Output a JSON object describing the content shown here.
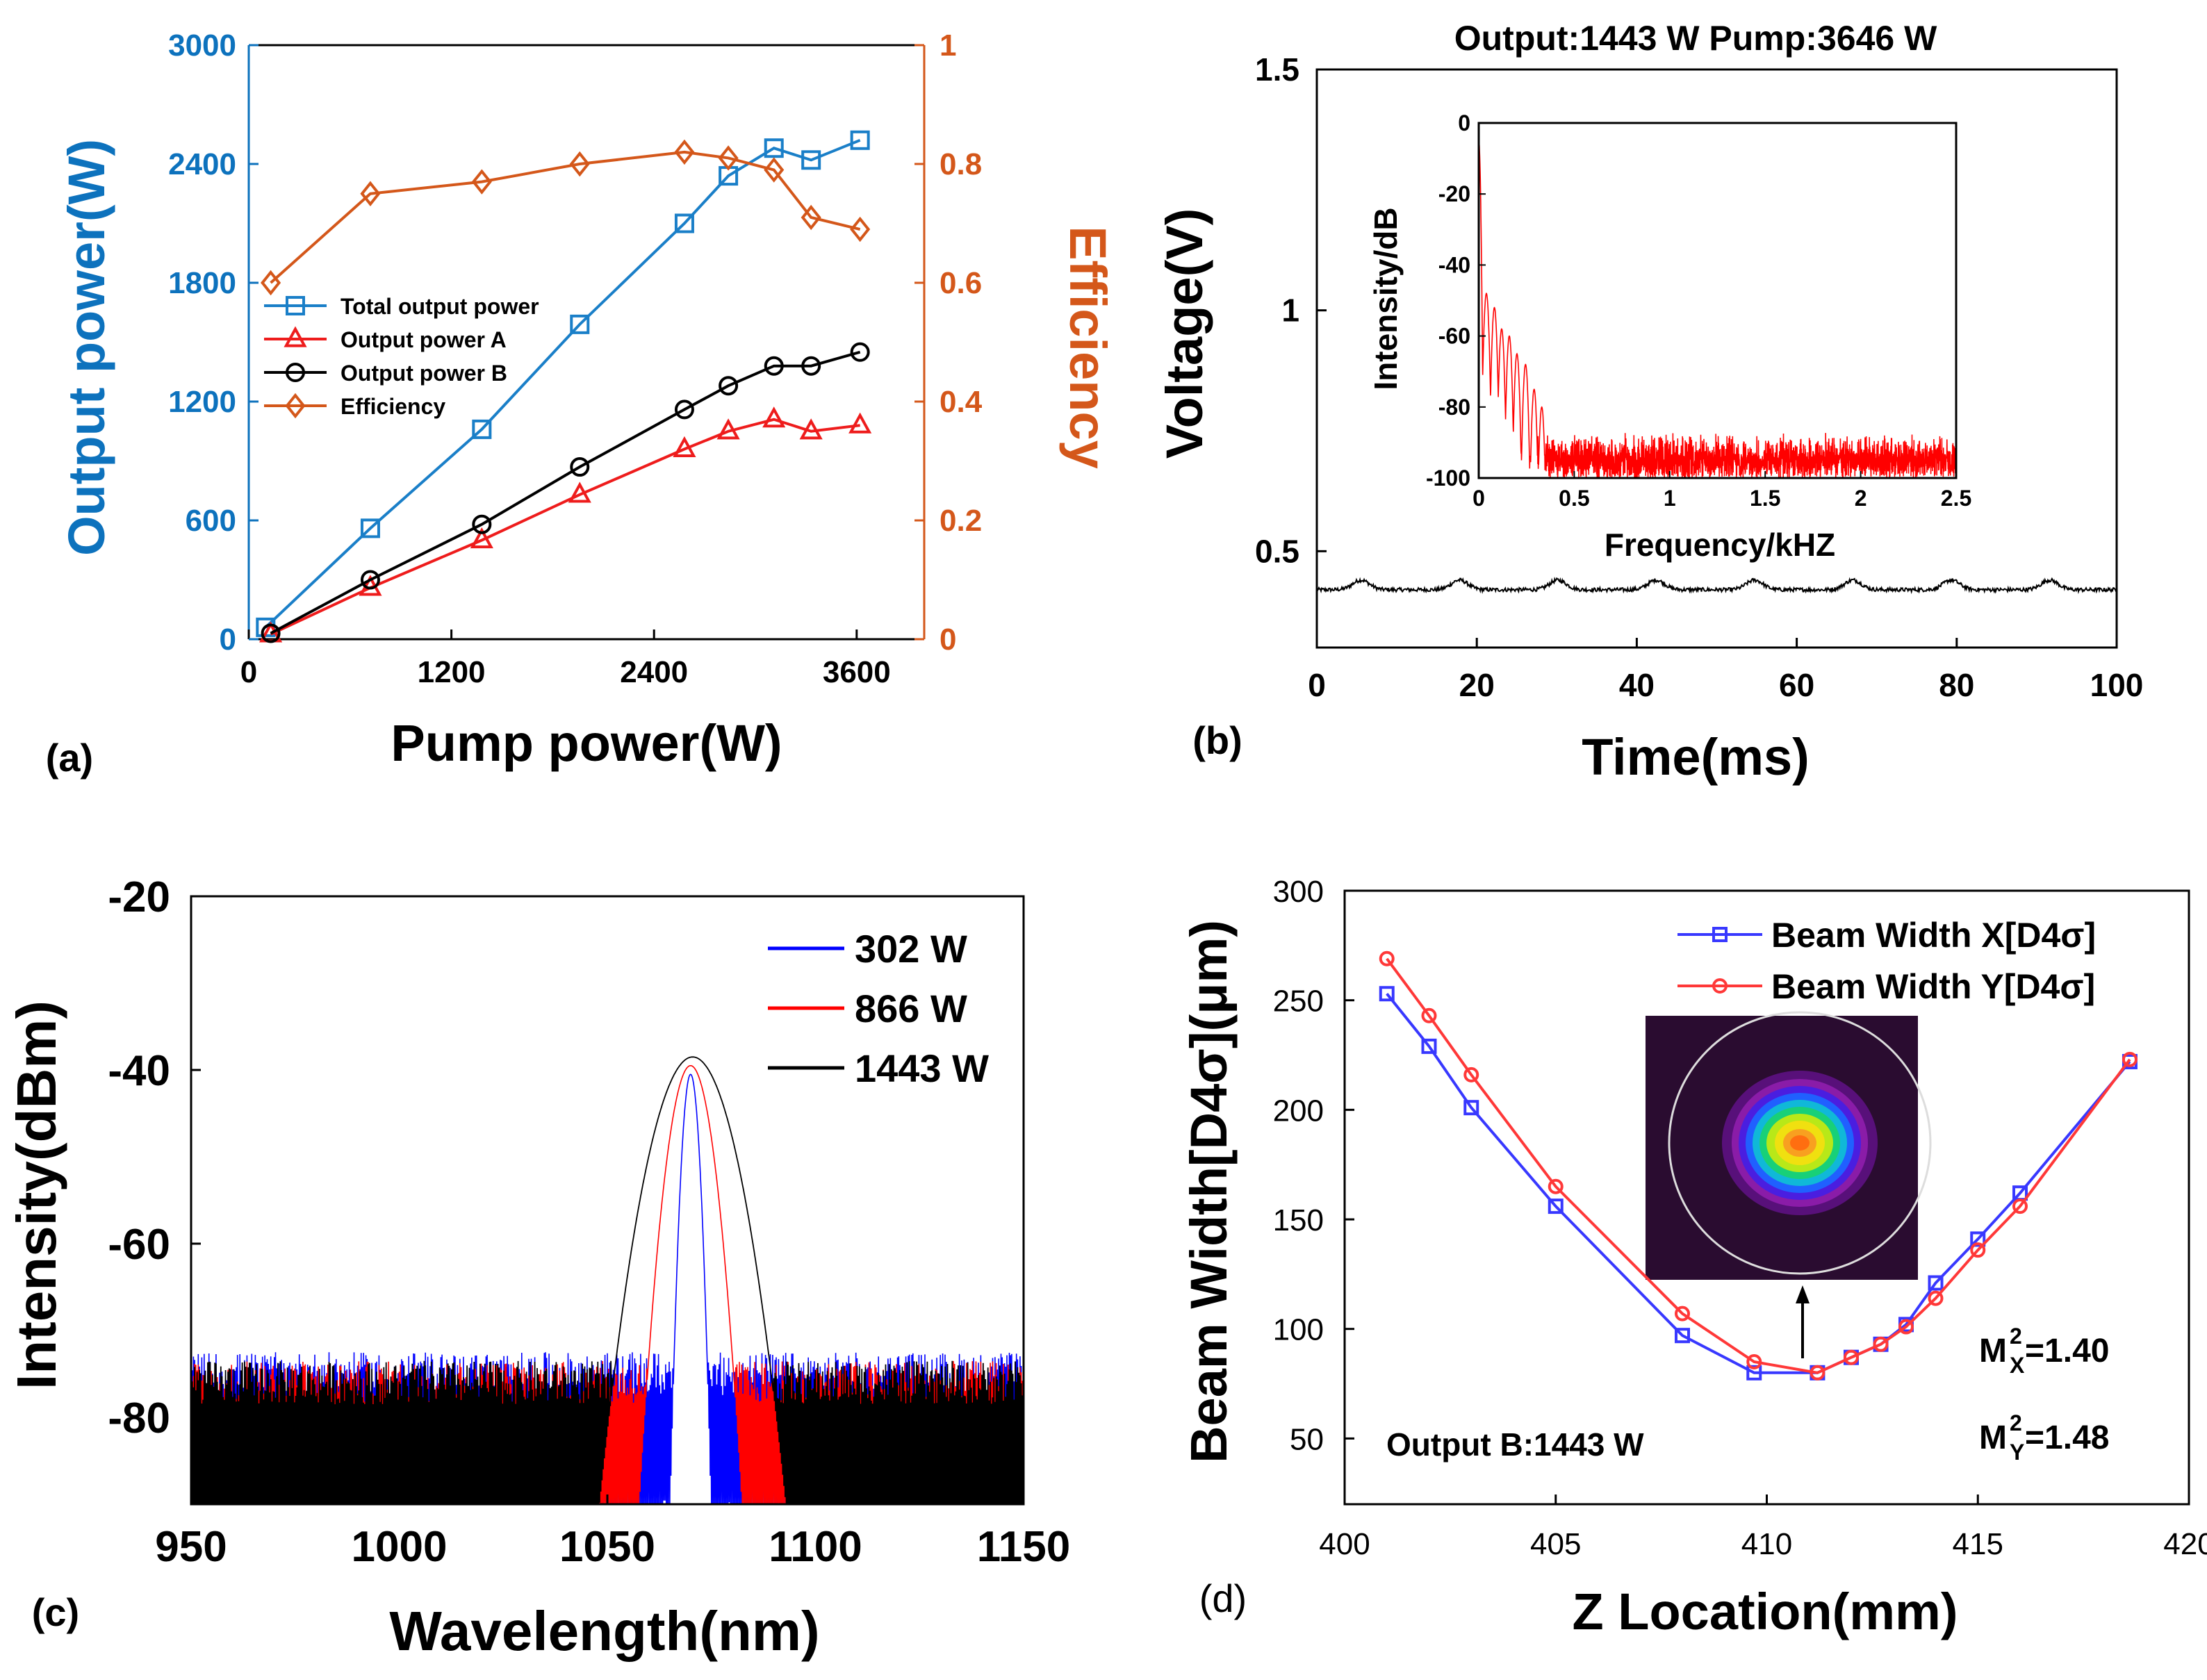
{
  "chart_data": [
    {
      "panel": "(a)",
      "type": "line",
      "title": "",
      "xlabel": "Pump power(W)",
      "ylabel": "Output power(W)",
      "y2label": "Efficiency",
      "xlim": [
        0,
        4000
      ],
      "ylim": [
        0,
        3000
      ],
      "y2lim": [
        0,
        1
      ],
      "xticks": [
        "0",
        "1200",
        "2400",
        "3600"
      ],
      "yticks": [
        "0",
        "600",
        "1200",
        "1800",
        "2400",
        "3000"
      ],
      "y2ticks": [
        "0",
        "0.2",
        "0.4",
        "0.6",
        "0.8",
        "1"
      ],
      "colors": {
        "left_axis": "#0d72bd",
        "right_axis": "#d4571a"
      },
      "legend_position": "middle-left",
      "series": [
        {
          "name": "Total output power",
          "axis": "left",
          "color": "#1a7fc8",
          "marker": "square",
          "x": [
            100,
            720,
            1380,
            1960,
            2580,
            2840,
            3110,
            3330,
            3620
          ],
          "y": [
            60,
            560,
            1060,
            1590,
            2100,
            2340,
            2480,
            2420,
            2520
          ]
        },
        {
          "name": "Output power A",
          "axis": "left",
          "color": "#ee1c1c",
          "marker": "triangle",
          "x": [
            130,
            720,
            1380,
            1960,
            2580,
            2840,
            3110,
            3330,
            3620
          ],
          "y": [
            25,
            260,
            500,
            730,
            960,
            1050,
            1110,
            1050,
            1080
          ]
        },
        {
          "name": "Output power B",
          "axis": "left",
          "color": "#000000",
          "marker": "circle",
          "x": [
            130,
            720,
            1380,
            1960,
            2580,
            2840,
            3110,
            3330,
            3620
          ],
          "y": [
            30,
            300,
            580,
            870,
            1160,
            1280,
            1380,
            1380,
            1450
          ]
        },
        {
          "name": "Efficiency",
          "axis": "right",
          "color": "#d4571a",
          "marker": "diamond",
          "x": [
            130,
            720,
            1380,
            1960,
            2580,
            2840,
            3110,
            3330,
            3620
          ],
          "y": [
            0.6,
            0.75,
            0.77,
            0.8,
            0.82,
            0.81,
            0.79,
            0.71,
            0.69
          ]
        }
      ]
    },
    {
      "panel": "(b)",
      "type": "line",
      "title": "Output:1443 W Pump:3646 W",
      "xlabel": "Time(ms)",
      "ylabel": "Voltage(V)",
      "xlim": [
        0,
        100
      ],
      "ylim": [
        0.3,
        1.5
      ],
      "xticks": [
        "0",
        "20",
        "40",
        "60",
        "80",
        "100"
      ],
      "yticks": [
        "0.5",
        "1",
        "1.5"
      ],
      "series": [
        {
          "name": "Voltage",
          "color": "#000000",
          "baseline": 0.42,
          "ripple_amplitude": 0.02,
          "ripple_period_ms": 12.3
        }
      ],
      "inset": {
        "type": "line",
        "xlabel": "Frequency/kHZ",
        "ylabel": "Intensity/dB",
        "xlim": [
          0,
          2.5
        ],
        "ylim": [
          -100,
          0
        ],
        "xticks": [
          "0",
          "0.5",
          "1",
          "1.5",
          "2",
          "2.5"
        ],
        "yticks": [
          "0",
          "-20",
          "-40",
          "-60",
          "-80",
          "-100"
        ],
        "series": [
          {
            "name": "Spectrum",
            "color": "#ff0000",
            "noise_floor": -93,
            "peaks_x": [
              0.0,
              0.04,
              0.082,
              0.12,
              0.16,
              0.2,
              0.245,
              0.29,
              0.33
            ],
            "peaks_y": [
              -5,
              -48,
              -52,
              -58,
              -60,
              -65,
              -68,
              -75,
              -80
            ]
          }
        ]
      }
    },
    {
      "panel": "(c)",
      "type": "line",
      "title": "",
      "xlabel": "Wavelength(nm)",
      "ylabel": "Intensity(dBm)",
      "xlim": [
        950,
        1150
      ],
      "ylim": [
        -90,
        -20
      ],
      "xticks": [
        "950",
        "1000",
        "1050",
        "1100",
        "1150"
      ],
      "yticks": [
        "-20",
        "-40",
        "-60",
        "-80"
      ],
      "legend_position": "top-right",
      "series": [
        {
          "name": "302 W",
          "color": "#0000ff",
          "peak_x": 1070,
          "peak_y": -40.5,
          "fwhm_nm": 2,
          "floor": -73
        },
        {
          "name": "866 W",
          "color": "#ff0000",
          "peak_x": 1070,
          "peak_y": -39.5,
          "fwhm_nm": 5,
          "floor": -74
        },
        {
          "name": "1443 W",
          "color": "#000000",
          "peak_x": 1070.5,
          "peak_y": -38.5,
          "fwhm_nm": 9,
          "floor": -74
        }
      ]
    },
    {
      "panel": "(d)",
      "type": "line",
      "title": "",
      "xlabel": "Z Location(mm)",
      "ylabel": "Beam Width[D4σ](μm)",
      "xlim": [
        400,
        420
      ],
      "ylim": [
        20,
        300
      ],
      "xticks": [
        "400",
        "405",
        "410",
        "415",
        "420"
      ],
      "yticks": [
        "50",
        "100",
        "150",
        "200",
        "250",
        "300"
      ],
      "legend_position": "top-right",
      "annotations": {
        "output": "Output B:1443 W",
        "m2x": "=1.40",
        "m2y": "=1.48",
        "m_base": "M",
        "sup": "2",
        "sub_x": "X",
        "sub_y": "Y"
      },
      "series": [
        {
          "name": "Beam Width X[D4σ]",
          "color": "#3838ff",
          "marker": "square",
          "x": [
            401,
            402,
            403,
            405,
            408,
            409.7,
            411.2,
            412,
            412.7,
            413.3,
            414,
            415,
            416,
            418.6
          ],
          "y": [
            253,
            229,
            201,
            156,
            97,
            80,
            80,
            87,
            93,
            102,
            121,
            141,
            162,
            222
          ]
        },
        {
          "name": "Beam Width Y[D4σ]",
          "color": "#ff3838",
          "marker": "circle",
          "x": [
            401,
            402,
            403,
            405,
            408,
            409.7,
            411.2,
            412,
            412.7,
            413.3,
            414,
            415,
            416,
            418.6
          ],
          "y": [
            269,
            243,
            216,
            165,
            107,
            85,
            80,
            87,
            93,
            101,
            114,
            136,
            156,
            223
          ]
        }
      ]
    }
  ],
  "panel_labels": [
    "(a)",
    "(b)",
    "(c)",
    "(d)"
  ]
}
